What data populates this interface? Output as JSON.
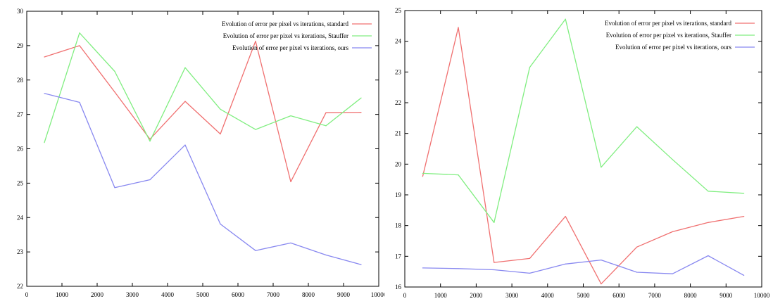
{
  "chart_data": [
    {
      "type": "line",
      "title": "",
      "xlabel": "",
      "ylabel": "",
      "xlim": [
        0,
        10000
      ],
      "ylim": [
        22,
        30
      ],
      "xticks": [
        "0",
        "1000",
        "2000",
        "3000",
        "4000",
        "5000",
        "6000",
        "7000",
        "8000",
        "9000",
        "10000"
      ],
      "yticks": [
        "22",
        "23",
        "24",
        "25",
        "26",
        "27",
        "28",
        "29",
        "30"
      ],
      "grid": false,
      "legend_position": "top-right",
      "x": [
        500,
        1500,
        2500,
        3500,
        4500,
        5500,
        6500,
        7500,
        8500,
        9500
      ],
      "series": [
        {
          "name": "Evolution of error per pixel vs iterations, standard",
          "color": "#f07070",
          "values": [
            28.67,
            29.0,
            27.65,
            26.28,
            27.38,
            26.43,
            29.13,
            25.04,
            27.05,
            27.06
          ]
        },
        {
          "name": "Evolution of error per pixel vs iterations, Stauffer",
          "color": "#80ee80",
          "values": [
            26.18,
            29.37,
            28.25,
            26.22,
            28.36,
            27.15,
            26.56,
            26.96,
            26.67,
            27.48
          ]
        },
        {
          "name": "Evolution of error per pixel vs iterations, ours",
          "color": "#8888f0",
          "values": [
            27.61,
            27.35,
            24.87,
            25.1,
            26.11,
            23.81,
            23.04,
            23.26,
            22.91,
            22.63
          ]
        }
      ]
    },
    {
      "type": "line",
      "title": "",
      "xlabel": "",
      "ylabel": "",
      "xlim": [
        0,
        10000
      ],
      "ylim": [
        16,
        25
      ],
      "xticks": [
        "0",
        "1000",
        "2000",
        "3000",
        "4000",
        "5000",
        "6000",
        "7000",
        "8000",
        "9000",
        "10000"
      ],
      "yticks": [
        "16",
        "17",
        "18",
        "19",
        "20",
        "21",
        "22",
        "23",
        "24",
        "25"
      ],
      "grid": false,
      "legend_position": "top-right",
      "x": [
        500,
        1500,
        2500,
        3500,
        4500,
        5500,
        6500,
        7500,
        8500,
        9500
      ],
      "series": [
        {
          "name": "Evolution of error per pixel vs iterations, standard",
          "color": "#f07070",
          "values": [
            19.6,
            24.45,
            16.8,
            16.93,
            18.3,
            16.1,
            17.3,
            17.8,
            18.1,
            18.3
          ]
        },
        {
          "name": "Evolution of error per pixel vs iterations, Stauffer",
          "color": "#80ee80",
          "values": [
            19.7,
            19.65,
            18.1,
            23.15,
            24.72,
            19.9,
            21.22,
            20.15,
            19.12,
            19.05
          ]
        },
        {
          "name": "Evolution of error per pixel vs iterations, ours",
          "color": "#8888f0",
          "values": [
            16.62,
            16.6,
            16.56,
            16.45,
            16.75,
            16.88,
            16.48,
            16.43,
            17.02,
            16.38
          ]
        }
      ]
    }
  ]
}
